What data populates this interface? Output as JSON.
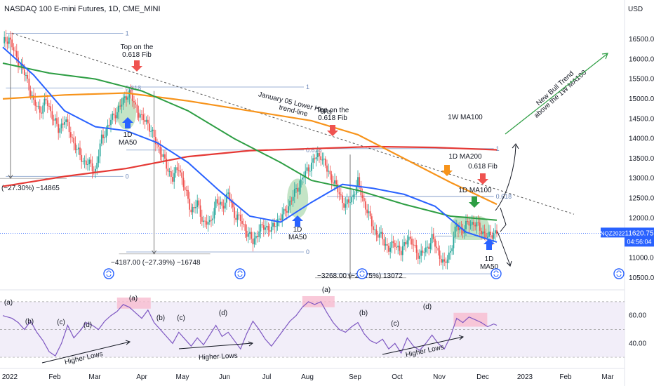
{
  "header": {
    "title": "NASDAQ 100 E-mini Futures, 1D, CME_MINI",
    "currency": "USD"
  },
  "colors": {
    "up": "#26a69a",
    "down": "#ef5350",
    "ma50": "#2962ff",
    "ma200_1d": "#2e9e44",
    "ma100_1w": "#e53935",
    "ma200_orange": "#f7931a",
    "rsi": "#7e57c2",
    "fib": "#9db2d6",
    "price_tag": "#2962ff",
    "green_ellipse": "#a5d6a7",
    "pink_box": "#f8bbd0",
    "rsi_band": "#ede7f6"
  },
  "price_tag": {
    "symbol": "NQZ2022",
    "price": "11620.75",
    "countdown": "04:56:04"
  },
  "chart_data": [
    {
      "type": "line",
      "name": "price",
      "x_axis_labels": [
        "2022",
        "Feb",
        "Mar",
        "Apr",
        "May",
        "Jun",
        "Jul",
        "Aug",
        "Sep",
        "Oct",
        "Nov",
        "Dec",
        "2023",
        "Feb",
        "Mar"
      ],
      "y_ticks": [
        10500,
        11000,
        11500,
        12000,
        12500,
        13000,
        13500,
        14000,
        14500,
        15000,
        15500,
        16000,
        16500
      ],
      "y_tick_labels": [
        "10500.00",
        "11000.00",
        "11500.00",
        "12000.00",
        "12500.00",
        "13000.00",
        "13500.00",
        "14000.00",
        "14500.00",
        "15000.00",
        "15500.00",
        "16000.00",
        "16500.00"
      ],
      "ylim": [
        10250,
        17100
      ],
      "close_path": [
        [
          0,
          16400
        ],
        [
          4,
          16550
        ],
        [
          8,
          16100
        ],
        [
          12,
          15800
        ],
        [
          16,
          15450
        ],
        [
          20,
          14900
        ],
        [
          24,
          14700
        ],
        [
          28,
          14950
        ],
        [
          32,
          14600
        ],
        [
          36,
          14200
        ],
        [
          40,
          14500
        ],
        [
          44,
          14100
        ],
        [
          48,
          13700
        ],
        [
          52,
          13450
        ],
        [
          56,
          13350
        ],
        [
          60,
          13200
        ],
        [
          64,
          14000
        ],
        [
          68,
          14300
        ],
        [
          72,
          14600
        ],
        [
          76,
          14800
        ],
        [
          80,
          15100
        ],
        [
          82,
          15150
        ],
        [
          86,
          14800
        ],
        [
          90,
          14500
        ],
        [
          94,
          14400
        ],
        [
          98,
          14000
        ],
        [
          102,
          13700
        ],
        [
          106,
          13300
        ],
        [
          110,
          13000
        ],
        [
          114,
          13300
        ],
        [
          118,
          12700
        ],
        [
          122,
          12200
        ],
        [
          126,
          12350
        ],
        [
          130,
          11900
        ],
        [
          134,
          11850
        ],
        [
          138,
          12400
        ],
        [
          142,
          12300
        ],
        [
          146,
          12600
        ],
        [
          150,
          12100
        ],
        [
          154,
          11950
        ],
        [
          158,
          11650
        ],
        [
          162,
          11400
        ],
        [
          166,
          11700
        ],
        [
          170,
          11800
        ],
        [
          174,
          11700
        ],
        [
          178,
          11950
        ],
        [
          182,
          12100
        ],
        [
          186,
          12400
        ],
        [
          190,
          12700
        ],
        [
          194,
          13000
        ],
        [
          198,
          13250
        ],
        [
          202,
          13500
        ],
        [
          206,
          13600
        ],
        [
          210,
          13200
        ],
        [
          214,
          12950
        ],
        [
          218,
          12600
        ],
        [
          222,
          12300
        ],
        [
          226,
          12500
        ],
        [
          230,
          12900
        ],
        [
          234,
          12400
        ],
        [
          238,
          11950
        ],
        [
          242,
          11600
        ],
        [
          246,
          11500
        ],
        [
          250,
          11200
        ],
        [
          254,
          11400
        ],
        [
          258,
          11100
        ],
        [
          262,
          11550
        ],
        [
          266,
          11300
        ],
        [
          270,
          11050
        ],
        [
          274,
          11200
        ],
        [
          278,
          11500
        ],
        [
          282,
          11150
        ],
        [
          286,
          10800
        ],
        [
          290,
          11200
        ],
        [
          294,
          11800
        ],
        [
          298,
          11700
        ],
        [
          302,
          11900
        ],
        [
          306,
          11850
        ],
        [
          310,
          11700
        ],
        [
          314,
          11500
        ],
        [
          318,
          11650
        ],
        [
          320,
          11620
        ]
      ],
      "ma50_1d": [
        [
          0,
          16300
        ],
        [
          20,
          15600
        ],
        [
          40,
          14700
        ],
        [
          60,
          14300
        ],
        [
          80,
          14200
        ],
        [
          100,
          13900
        ],
        [
          120,
          13400
        ],
        [
          140,
          12700
        ],
        [
          160,
          12050
        ],
        [
          180,
          11900
        ],
        [
          200,
          12400
        ],
        [
          220,
          12850
        ],
        [
          240,
          12750
        ],
        [
          260,
          12600
        ],
        [
          280,
          12300
        ],
        [
          300,
          11650
        ],
        [
          320,
          11400
        ]
      ],
      "ma200_1d": [
        [
          0,
          15900
        ],
        [
          30,
          15650
        ],
        [
          60,
          15500
        ],
        [
          90,
          15200
        ],
        [
          120,
          14700
        ],
        [
          150,
          14000
        ],
        [
          180,
          13400
        ],
        [
          200,
          12950
        ],
        [
          230,
          12700
        ],
        [
          260,
          12350
        ],
        [
          290,
          12050
        ],
        [
          320,
          11950
        ]
      ],
      "ma200_1w_orange": [
        [
          0,
          15000
        ],
        [
          40,
          15100
        ],
        [
          80,
          15150
        ],
        [
          120,
          14950
        ],
        [
          160,
          14700
        ],
        [
          200,
          14450
        ],
        [
          230,
          14100
        ],
        [
          260,
          13500
        ],
        [
          290,
          12900
        ],
        [
          320,
          12350
        ]
      ],
      "ma100_1w_red": [
        [
          0,
          12800
        ],
        [
          40,
          13050
        ],
        [
          80,
          13250
        ],
        [
          120,
          13550
        ],
        [
          160,
          13700
        ],
        [
          200,
          13750
        ],
        [
          240,
          13800
        ],
        [
          280,
          13780
        ],
        [
          320,
          13720
        ]
      ]
    },
    {
      "type": "line",
      "name": "rsi",
      "y_ticks": [
        40,
        60
      ],
      "y_tick_labels": [
        "40.00",
        "60.00"
      ],
      "ylim": [
        27,
        75
      ],
      "values": [
        [
          0,
          60
        ],
        [
          6,
          58
        ],
        [
          10,
          55
        ],
        [
          14,
          50
        ],
        [
          18,
          56
        ],
        [
          22,
          48
        ],
        [
          26,
          42
        ],
        [
          30,
          34
        ],
        [
          34,
          31
        ],
        [
          38,
          40
        ],
        [
          42,
          53
        ],
        [
          46,
          44
        ],
        [
          50,
          49
        ],
        [
          54,
          55
        ],
        [
          58,
          53
        ],
        [
          62,
          50
        ],
        [
          66,
          56
        ],
        [
          70,
          60
        ],
        [
          74,
          63
        ],
        [
          78,
          68
        ],
        [
          82,
          66
        ],
        [
          86,
          62
        ],
        [
          90,
          58
        ],
        [
          94,
          64
        ],
        [
          98,
          55
        ],
        [
          102,
          50
        ],
        [
          106,
          45
        ],
        [
          110,
          40
        ],
        [
          114,
          48
        ],
        [
          118,
          43
        ],
        [
          122,
          38
        ],
        [
          126,
          44
        ],
        [
          130,
          39
        ],
        [
          134,
          46
        ],
        [
          138,
          53
        ],
        [
          142,
          45
        ],
        [
          146,
          48
        ],
        [
          150,
          42
        ],
        [
          154,
          36
        ],
        [
          158,
          47
        ],
        [
          162,
          56
        ],
        [
          166,
          50
        ],
        [
          170,
          43
        ],
        [
          174,
          38
        ],
        [
          178,
          44
        ],
        [
          182,
          50
        ],
        [
          186,
          56
        ],
        [
          190,
          60
        ],
        [
          194,
          66
        ],
        [
          198,
          70
        ],
        [
          202,
          68
        ],
        [
          206,
          70
        ],
        [
          210,
          62
        ],
        [
          214,
          55
        ],
        [
          218,
          50
        ],
        [
          222,
          48
        ],
        [
          226,
          52
        ],
        [
          230,
          55
        ],
        [
          234,
          47
        ],
        [
          238,
          42
        ],
        [
          242,
          40
        ],
        [
          246,
          43
        ],
        [
          250,
          36
        ],
        [
          254,
          40
        ],
        [
          258,
          33
        ],
        [
          262,
          44
        ],
        [
          266,
          38
        ],
        [
          270,
          35
        ],
        [
          274,
          40
        ],
        [
          278,
          46
        ],
        [
          282,
          40
        ],
        [
          286,
          36
        ],
        [
          290,
          45
        ],
        [
          294,
          58
        ],
        [
          298,
          55
        ],
        [
          302,
          59
        ],
        [
          306,
          57
        ],
        [
          310,
          55
        ],
        [
          314,
          52
        ],
        [
          318,
          54
        ],
        [
          320,
          53
        ]
      ]
    }
  ],
  "annotations": {
    "top_0618_fib_1": "Top on the\n0.618 Fib",
    "top_0618_fib_2": "Top on the\n0.618 Fib",
    "ma50_label_1": "1D\nMA50",
    "ma50_label_2": "1D\nMA50",
    "ma50_label_3": "1D\nMA50",
    "trendline": "January 05 Lower Highs\ntrend-line",
    "ma100_1w": "1W MA100",
    "ma200_1d": "1D MA200",
    "fib_0618": "0.618 Fib",
    "ma100_1d": "1D MA100",
    "new_bull": "New Bull Trend\nabove the 1W MA100",
    "measure_1": "(−27.30%) −14865",
    "measure_2": "−4187.00 (−27.39%) −16748",
    "measure_3": "−3268.00 (−23.75%) 13072",
    "fib_levels": [
      "1",
      "0.618",
      "0"
    ],
    "higher_lows": "Higher Lows",
    "rsi_labels": [
      "(a)",
      "(b)",
      "(c)",
      "(d)"
    ]
  }
}
